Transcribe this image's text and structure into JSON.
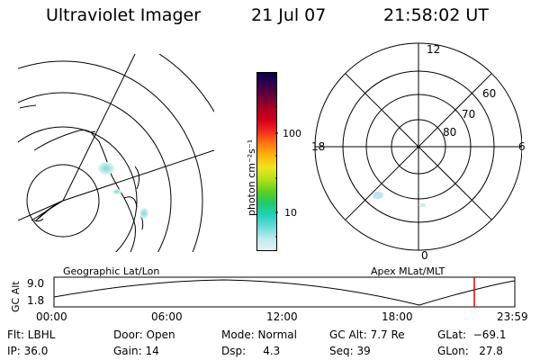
{
  "header": {
    "instrument": "Ultraviolet Imager",
    "date": "21 Jul 07",
    "time": "21:58:02 UT"
  },
  "colorbar": {
    "label": "photon cm⁻²s⁻¹",
    "ticks": [
      "100",
      "10"
    ],
    "stops": [
      "#e6f2f4",
      "#bfe8ee",
      "#68dad8",
      "#22d0ba",
      "#22c96a",
      "#5fd01e",
      "#b5e11a",
      "#ece521",
      "#ffb40e",
      "#ff7a12",
      "#f22e1c",
      "#d4001a",
      "#a90022",
      "#6d0036",
      "#35004a",
      "#08004a"
    ]
  },
  "geo_map": {
    "label": "Geographic Lat/Lon"
  },
  "polar_map": {
    "label": "Apex MLat/MLT",
    "mlt_labels": {
      "top": "12",
      "bottom": "0",
      "left": "18",
      "right": "6"
    },
    "lat_labels": [
      "60",
      "70",
      "80"
    ]
  },
  "altitude_plot": {
    "ylabel": "GC Alt",
    "yticks": [
      "9.0",
      "1.8"
    ],
    "xticks": [
      "00:00",
      "06:00",
      "12:00",
      "18:00",
      "23:59"
    ]
  },
  "footer": {
    "flt": "Flt: LBHL",
    "ip": "IP: 36.0",
    "door": "Door: Open",
    "gain": "Gain: 14",
    "mode": "Mode: Normal",
    "dsp": "Dsp:     4.3",
    "gcalt": "GC Alt: 7.7 Re",
    "seq": "Seq: 39",
    "glat": "GLat:  −69.1",
    "glon": "GLon:   27.8"
  },
  "colors": {
    "marker": "#e00000"
  }
}
